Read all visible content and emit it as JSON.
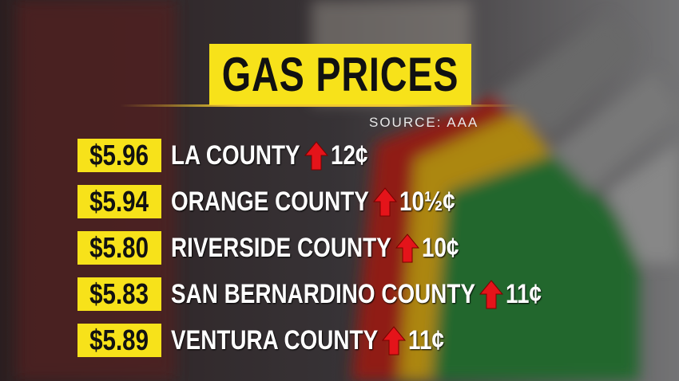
{
  "header": {
    "title": "GAS PRICES",
    "source": "SOURCE: AAA"
  },
  "rows": [
    {
      "price": "$5.96",
      "county": "LA COUNTY",
      "change": "12¢"
    },
    {
      "price": "$5.94",
      "county": "ORANGE COUNTY",
      "change": "10½¢"
    },
    {
      "price": "$5.80",
      "county": "RIVERSIDE COUNTY",
      "change": "10¢"
    },
    {
      "price": "$5.83",
      "county": "SAN BERNARDINO COUNTY",
      "change": "11¢"
    },
    {
      "price": "$5.89",
      "county": "VENTURA COUNTY",
      "change": "11¢"
    }
  ]
}
